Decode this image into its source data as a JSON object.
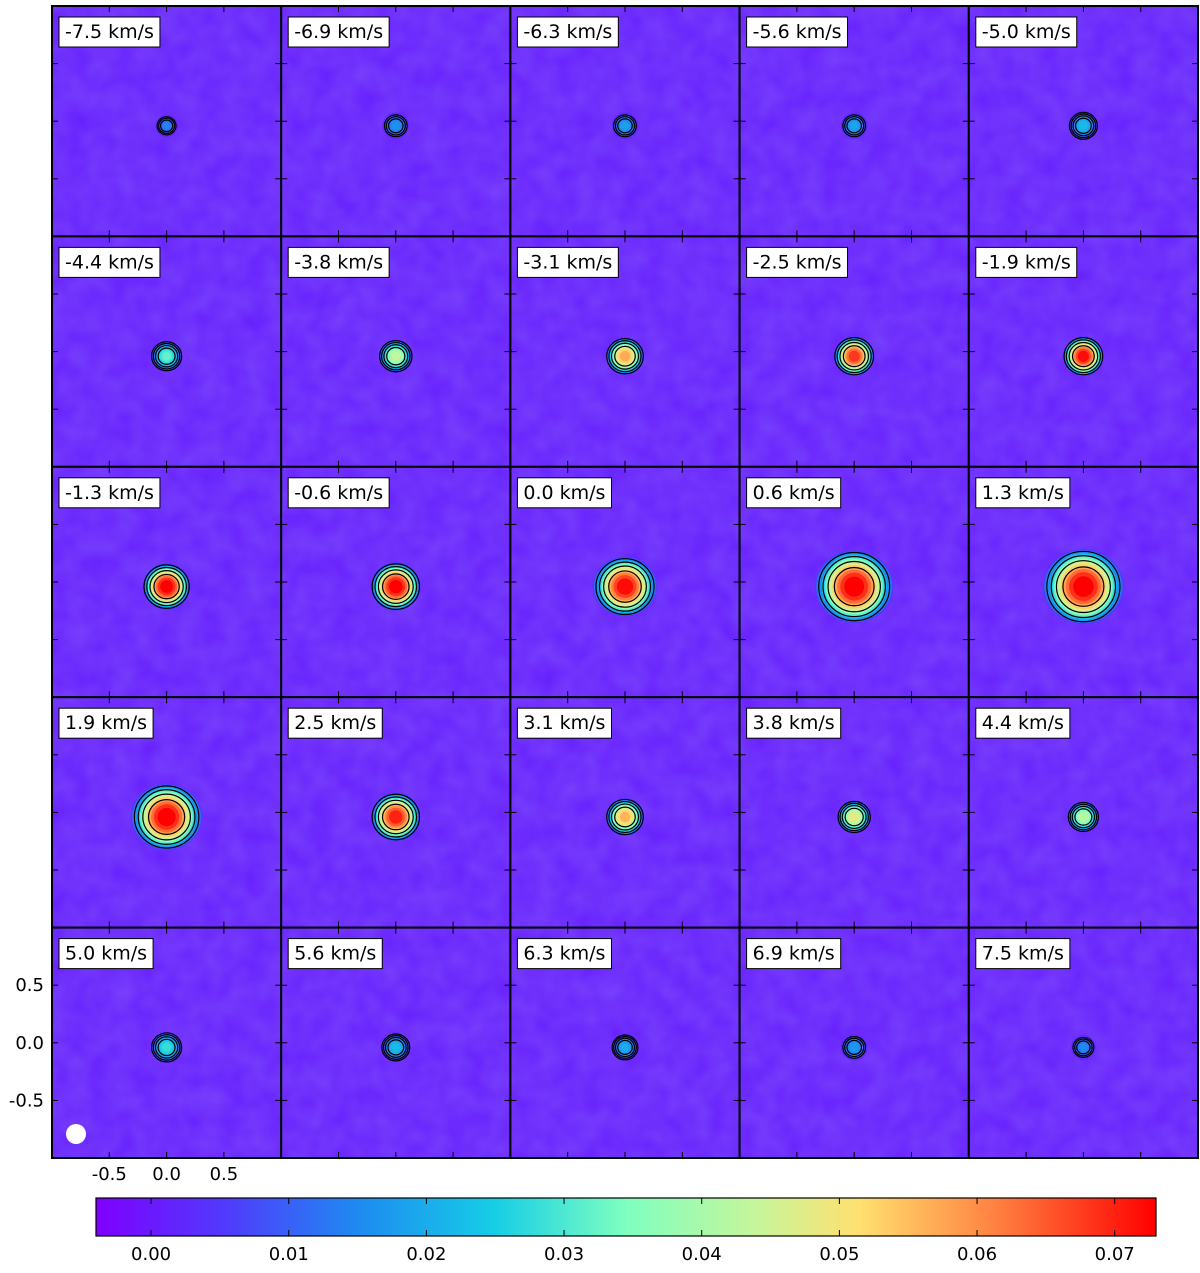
{
  "chart_data": {
    "type": "heatmap",
    "description": "Channel maps",
    "grid": {
      "rows": 5,
      "cols": 5
    },
    "panels": [
      {
        "label": "-7.5 km/s",
        "velocity": -7.5,
        "peak": 0.014,
        "extent": 0.1
      },
      {
        "label": "-6.9 km/s",
        "velocity": -6.9,
        "peak": 0.016,
        "extent": 0.12
      },
      {
        "label": "-6.3 km/s",
        "velocity": -6.3,
        "peak": 0.018,
        "extent": 0.12
      },
      {
        "label": "-5.6 km/s",
        "velocity": -5.6,
        "peak": 0.019,
        "extent": 0.12
      },
      {
        "label": "-5.0 km/s",
        "velocity": -5.0,
        "peak": 0.022,
        "extent": 0.13
      },
      {
        "label": "-4.4 km/s",
        "velocity": -4.4,
        "peak": 0.032,
        "extent": 0.14
      },
      {
        "label": "-3.8 km/s",
        "velocity": -3.8,
        "peak": 0.043,
        "extent": 0.15
      },
      {
        "label": "-3.1 km/s",
        "velocity": -3.1,
        "peak": 0.057,
        "extent": 0.17
      },
      {
        "label": "-2.5 km/s",
        "velocity": -2.5,
        "peak": 0.068,
        "extent": 0.18
      },
      {
        "label": "-1.9 km/s",
        "velocity": -1.9,
        "peak": 0.072,
        "extent": 0.18
      },
      {
        "label": "-1.3 km/s",
        "velocity": -1.3,
        "peak": 0.074,
        "extent": 0.21
      },
      {
        "label": "-0.6 km/s",
        "velocity": -0.6,
        "peak": 0.074,
        "extent": 0.22
      },
      {
        "label": "0.0 km/s",
        "velocity": 0.0,
        "peak": 0.072,
        "extent": 0.27
      },
      {
        "label": "0.6 km/s",
        "velocity": 0.6,
        "peak": 0.074,
        "extent": 0.33
      },
      {
        "label": "1.3 km/s",
        "velocity": 1.3,
        "peak": 0.074,
        "extent": 0.34
      },
      {
        "label": "1.9 km/s",
        "velocity": 1.9,
        "peak": 0.074,
        "extent": 0.3
      },
      {
        "label": "2.5 km/s",
        "velocity": 2.5,
        "peak": 0.07,
        "extent": 0.22
      },
      {
        "label": "3.1 km/s",
        "velocity": 3.1,
        "peak": 0.056,
        "extent": 0.17
      },
      {
        "label": "3.8 km/s",
        "velocity": 3.8,
        "peak": 0.048,
        "extent": 0.15
      },
      {
        "label": "4.4 km/s",
        "velocity": 4.4,
        "peak": 0.042,
        "extent": 0.14
      },
      {
        "label": "5.0 km/s",
        "velocity": 5.0,
        "peak": 0.028,
        "extent": 0.14
      },
      {
        "label": "5.6 km/s",
        "velocity": 5.6,
        "peak": 0.022,
        "extent": 0.13
      },
      {
        "label": "6.3 km/s",
        "velocity": 6.3,
        "peak": 0.02,
        "extent": 0.12
      },
      {
        "label": "6.9 km/s",
        "velocity": 6.9,
        "peak": 0.017,
        "extent": 0.12
      },
      {
        "label": "7.5 km/s",
        "velocity": 7.5,
        "peak": 0.015,
        "extent": 0.11
      }
    ],
    "x_ticks": [
      "-0.5",
      "0.0",
      "0.5"
    ],
    "y_ticks": [
      "0.5",
      "0.0",
      "-0.5"
    ],
    "x_range": [
      -1.0,
      1.0
    ],
    "y_range": [
      -1.0,
      1.0
    ],
    "colorbar": {
      "ticks": [
        "0.00",
        "0.01",
        "0.02",
        "0.03",
        "0.04",
        "0.05",
        "0.06",
        "0.07"
      ],
      "tick_values": [
        0.0,
        0.01,
        0.02,
        0.03,
        0.04,
        0.05,
        0.06,
        0.07
      ],
      "range": [
        -0.004,
        0.073
      ],
      "colormap": "rainbow"
    },
    "contour_levels_fraction": [
      0.2,
      0.4,
      0.6,
      0.8
    ],
    "beam_marker": "white filled circle, lower-left corner of bottom-left panel",
    "grid_lines": false,
    "legend": "none"
  },
  "colors": {
    "background_level": "#6a1cf0",
    "contour": "#000000",
    "label_box": "#ffffff"
  }
}
